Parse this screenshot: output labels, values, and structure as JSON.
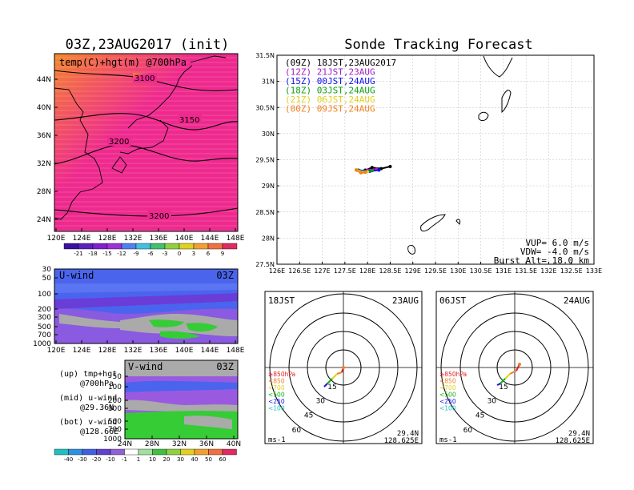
{
  "page": {
    "left_title": "03Z,23AUG2017 (init)",
    "right_title": "Sonde Tracking Forecast"
  },
  "colors": {
    "temperature_fill": "#ee2a8e",
    "temperature_warm": "#f08a30",
    "u_wind_fill": "#5068f0",
    "v_wind_fill": "#a060d8",
    "green": "#36cc36",
    "gray": "#aaaaaa"
  },
  "chart_data": [
    {
      "type": "heatmap",
      "panel": "top-left",
      "label": "temp(C)+hgt(m) @700hPa",
      "x_ticks": [
        "120E",
        "124E",
        "128E",
        "132E",
        "136E",
        "140E",
        "144E",
        "148E"
      ],
      "y_ticks": [
        "44N",
        "40N",
        "36N",
        "32N",
        "28N",
        "24N"
      ],
      "contour_labels": [
        "3100",
        "3150",
        "3200",
        "3200"
      ],
      "colorbar_ticks": [
        "-21",
        "-18",
        "-15",
        "-12",
        "-9",
        "-6",
        "-3",
        "0",
        "3",
        "6",
        "9"
      ]
    },
    {
      "type": "heatmap",
      "panel": "middle-left",
      "label": "U-wind",
      "time_label": "03Z",
      "x_ticks": [
        "120E",
        "124E",
        "128E",
        "132E",
        "136E",
        "140E",
        "144E",
        "148E"
      ],
      "y_ticks": [
        "30",
        "50",
        "100",
        "200",
        "300",
        "500",
        "700",
        "1000"
      ]
    },
    {
      "type": "heatmap",
      "panel": "bottom-left",
      "label": "V-wind",
      "time_label": "03Z",
      "x_ticks": [
        "24N",
        "28N",
        "32N",
        "36N",
        "40N"
      ],
      "y_ticks": [
        "50",
        "100",
        "200",
        "300",
        "500",
        "700",
        "1000"
      ],
      "colorbar_ticks": [
        "-40",
        "-30",
        "-20",
        "-10",
        "-1",
        "1",
        "10",
        "20",
        "30",
        "40",
        "50",
        "60"
      ]
    },
    {
      "type": "line",
      "panel": "right-map",
      "xlim": [
        126,
        133
      ],
      "ylim": [
        27.5,
        31.5
      ],
      "x_ticks": [
        "126E",
        "126.5E",
        "127E",
        "127.5E",
        "128E",
        "128.5E",
        "129E",
        "129.5E",
        "130E",
        "130.5E",
        "131E",
        "131.5E",
        "132E",
        "132.5E",
        "133E"
      ],
      "y_ticks": [
        "31.5N",
        "31N",
        "30.5N",
        "30N",
        "29.5N",
        "29N",
        "28.5N",
        "28N",
        "27.5N"
      ],
      "series": [
        {
          "name": "(09Z)  18JST,23AUG2017",
          "color": "#000000",
          "lon": [
            127.95,
            128.1,
            128.3,
            128.5
          ],
          "lat": [
            29.3,
            29.35,
            29.33,
            29.37
          ]
        },
        {
          "name": "(12Z)  21JST,23AUG",
          "color": "#a020c0",
          "lon": [
            127.85,
            128.0,
            128.2
          ],
          "lat": [
            29.28,
            29.3,
            29.32
          ]
        },
        {
          "name": "(15Z)  00JST,24AUG",
          "color": "#1010f0",
          "lon": [
            127.8,
            128.05,
            128.25
          ],
          "lat": [
            29.3,
            29.28,
            29.3
          ]
        },
        {
          "name": "(18Z)  03JST,24AUG",
          "color": "#10a010",
          "lon": [
            127.78,
            127.95,
            128.1
          ],
          "lat": [
            29.3,
            29.27,
            29.29
          ]
        },
        {
          "name": "(21Z)  06JST,24AUG",
          "color": "#e0d020",
          "lon": [
            127.75,
            127.9,
            128.0
          ],
          "lat": [
            29.31,
            29.26,
            29.27
          ]
        },
        {
          "name": "(00Z)  09JST,24AUG",
          "color": "#f08020",
          "lon": [
            127.75,
            127.85,
            127.95
          ],
          "lat": [
            29.3,
            29.25,
            29.26
          ]
        }
      ],
      "params": [
        "VUP= 6.0 m/s",
        "VDW= -4.0 m/s",
        "Burst Alt= 18.0 km"
      ]
    },
    {
      "type": "scatter",
      "panel": "hodograph-1",
      "time_label": "18JST",
      "date_label": "23AUG",
      "ring_labels": [
        "15",
        "30",
        "45",
        "60"
      ],
      "legend": [
        "≥850hPa",
        "<850",
        "<700",
        "<500",
        "<250",
        "<100"
      ],
      "unit": "ms-1",
      "location": [
        "29.4N",
        "128.625E"
      ]
    },
    {
      "type": "scatter",
      "panel": "hodograph-2",
      "time_label": "06JST",
      "date_label": "24AUG",
      "ring_labels": [
        "15",
        "30",
        "45",
        "60"
      ],
      "legend": [
        "≥850hPa",
        "<850",
        "<700",
        "<500",
        "<250",
        "<100"
      ],
      "unit": "ms-1",
      "location": [
        "29.4N",
        "128.625E"
      ]
    }
  ],
  "notes": {
    "up": "(up)  tmp+hgt",
    "up_sub": "@700hPa",
    "mid": "(mid)  u-wind",
    "mid_sub": "@29.36N",
    "bot": "(bot)  v-wind",
    "bot_sub": "@128.66E"
  }
}
